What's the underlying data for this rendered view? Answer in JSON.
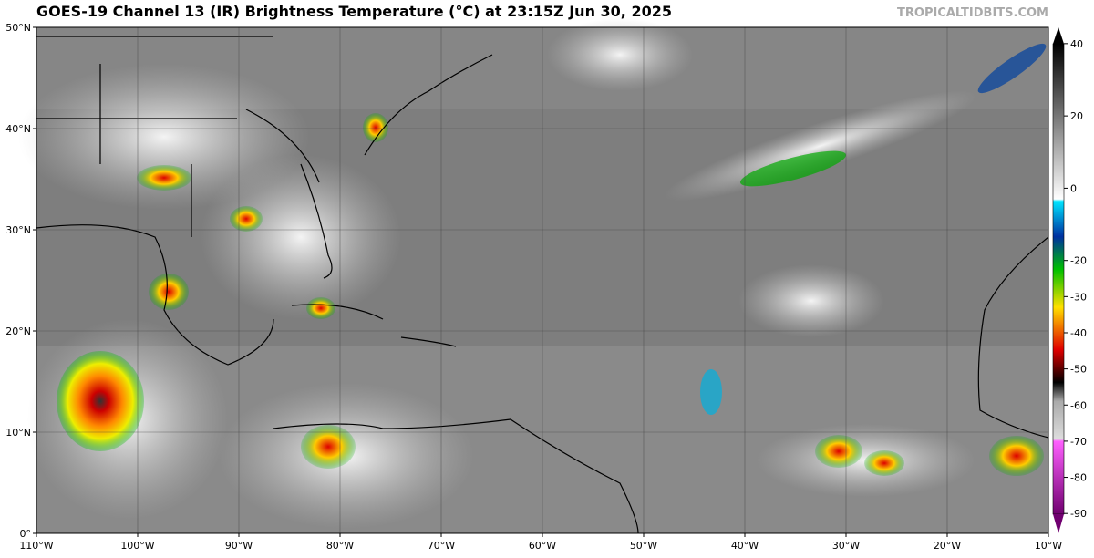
{
  "map": {
    "title": "GOES-19 Channel 13 (IR) Brightness Temperature (°C) at 23:15Z Jun 30, 2025",
    "credit": "TROPICALTIDBITS.COM",
    "lon_labels": [
      "110°W",
      "100°W",
      "90°W",
      "80°W",
      "70°W",
      "60°W",
      "50°W",
      "40°W",
      "30°W",
      "20°W",
      "10°W"
    ],
    "lat_labels": [
      "0°",
      "10°N",
      "20°N",
      "30°N",
      "40°N",
      "50°N"
    ],
    "colorbar": {
      "lim": [
        -95.5,
        44.5
      ],
      "ticks": [
        40,
        20,
        0,
        -20,
        -30,
        -40,
        -50,
        -60,
        -70,
        -80,
        -90
      ]
    }
  }
}
